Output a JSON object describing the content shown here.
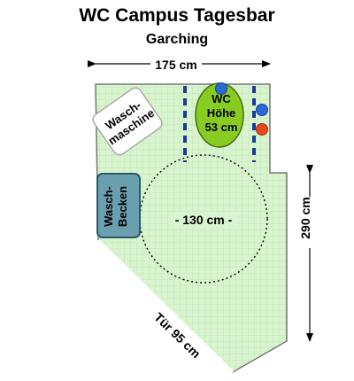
{
  "title": "WC Campus Tagesbar",
  "subtitle": "Garching",
  "dimensions": {
    "width_label": "175 cm",
    "height_label": "290 cm",
    "turning_circle_label": "- 130 cm -",
    "door_label": "Tür 95 cm"
  },
  "fixtures": {
    "washing_machine": {
      "line1": "Wasch-",
      "line2": "maschine"
    },
    "sink": {
      "line1": "Wasch-",
      "line2": "Becken"
    },
    "toilet": {
      "line1": "WC",
      "line2": "Höhe",
      "line3": "53 cm"
    }
  },
  "colors": {
    "floor": "#d9f5cf",
    "tile_grid": "#b8e3ac",
    "toilet": "#88cc22",
    "sink": "#6a9fb0",
    "grab_bar": "#1a3a9a",
    "flush_button": "#2a6ad4",
    "emergency_button": "#e84a1e"
  }
}
